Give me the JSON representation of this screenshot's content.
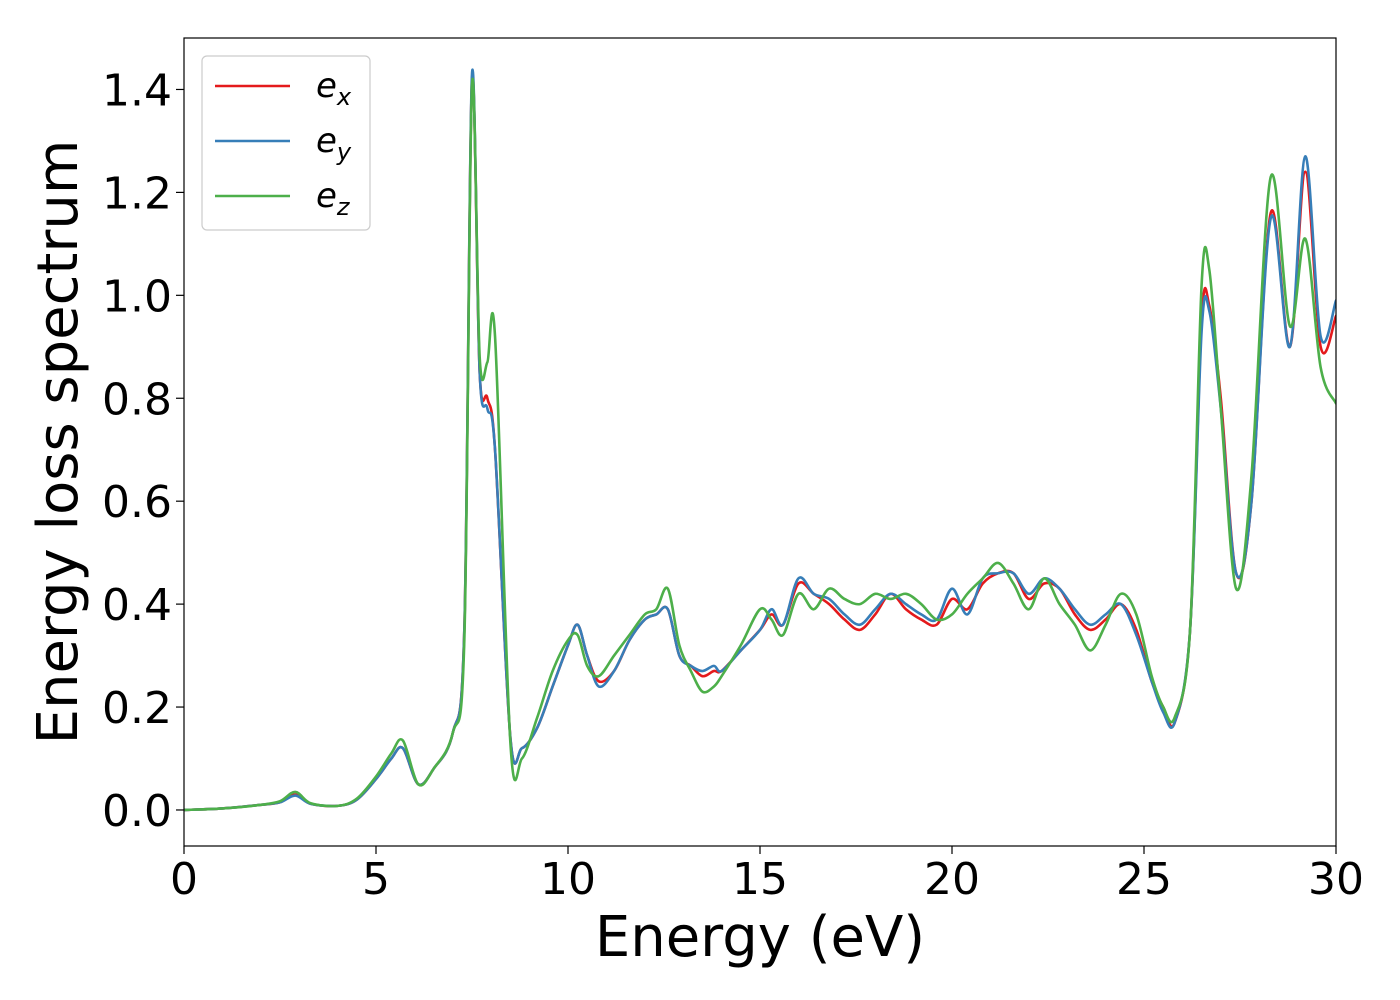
{
  "chart_data": {
    "type": "line",
    "xlabel": "Energy (eV)",
    "ylabel": "Energy loss spectrum",
    "xlim": [
      0,
      30
    ],
    "ylim": [
      -0.07,
      1.5
    ],
    "xticks": [
      0,
      5,
      10,
      15,
      20,
      25,
      30
    ],
    "xtick_labels": [
      "0",
      "5",
      "10",
      "15",
      "20",
      "25",
      "30"
    ],
    "yticks": [
      0.0,
      0.2,
      0.4,
      0.6,
      0.8,
      1.0,
      1.2,
      1.4
    ],
    "ytick_labels": [
      "0.0",
      "0.2",
      "0.4",
      "0.6",
      "0.8",
      "1.0",
      "1.2",
      "1.4"
    ],
    "grid": false,
    "legend_position": "top-left",
    "series": [
      {
        "name": "e_x",
        "legend_base": "e",
        "legend_sub": "x",
        "color": "#e41a1c",
        "x": [
          0,
          1,
          2,
          2.5,
          2.9,
          3.3,
          4,
          4.5,
          5,
          5.4,
          5.7,
          6.1,
          6.5,
          7,
          7.3,
          7.5,
          7.7,
          7.9,
          8.1,
          8.5,
          8.8,
          9.2,
          9.6,
          10,
          10.25,
          10.5,
          10.8,
          11.2,
          11.6,
          12,
          12.3,
          12.6,
          12.9,
          13.2,
          13.5,
          13.8,
          14,
          14.5,
          15,
          15.3,
          15.6,
          16,
          16.4,
          16.8,
          17.2,
          17.6,
          18,
          18.4,
          18.8,
          19.2,
          19.6,
          20,
          20.4,
          20.8,
          21.2,
          21.6,
          22,
          22.4,
          22.8,
          23.2,
          23.6,
          24,
          24.4,
          24.8,
          25.2,
          25.5,
          25.8,
          26.2,
          26.5,
          26.7,
          27,
          27.4,
          27.8,
          28.3,
          28.8,
          29.2,
          29.6,
          30
        ],
        "y": [
          0,
          0.003,
          0.01,
          0.015,
          0.03,
          0.012,
          0.008,
          0.02,
          0.06,
          0.1,
          0.12,
          0.05,
          0.08,
          0.15,
          0.35,
          1.42,
          0.85,
          0.8,
          0.7,
          0.14,
          0.12,
          0.16,
          0.24,
          0.32,
          0.36,
          0.3,
          0.25,
          0.27,
          0.33,
          0.37,
          0.38,
          0.39,
          0.3,
          0.28,
          0.26,
          0.27,
          0.27,
          0.31,
          0.35,
          0.38,
          0.36,
          0.44,
          0.42,
          0.4,
          0.37,
          0.35,
          0.38,
          0.42,
          0.39,
          0.37,
          0.36,
          0.41,
          0.39,
          0.44,
          0.46,
          0.46,
          0.41,
          0.44,
          0.43,
          0.38,
          0.35,
          0.37,
          0.4,
          0.35,
          0.25,
          0.2,
          0.17,
          0.35,
          0.95,
          0.98,
          0.8,
          0.46,
          0.6,
          1.16,
          0.9,
          1.24,
          0.9,
          0.96
        ]
      },
      {
        "name": "e_y",
        "legend_base": "e",
        "legend_sub": "y",
        "color": "#377eb8",
        "x": [
          0,
          1,
          2,
          2.5,
          2.9,
          3.3,
          4,
          4.5,
          5,
          5.4,
          5.7,
          6.1,
          6.5,
          7,
          7.3,
          7.5,
          7.7,
          7.9,
          8.1,
          8.5,
          8.8,
          9.2,
          9.6,
          10,
          10.25,
          10.5,
          10.8,
          11.2,
          11.6,
          12,
          12.3,
          12.6,
          12.9,
          13.2,
          13.5,
          13.8,
          14,
          14.5,
          15,
          15.3,
          15.6,
          16,
          16.4,
          16.8,
          17.2,
          17.6,
          18,
          18.4,
          18.8,
          19.2,
          19.6,
          20,
          20.4,
          20.8,
          21.2,
          21.6,
          22,
          22.4,
          22.8,
          23.2,
          23.6,
          24,
          24.4,
          24.8,
          25.2,
          25.5,
          25.8,
          26.2,
          26.5,
          26.7,
          27,
          27.4,
          27.8,
          28.3,
          28.8,
          29.2,
          29.6,
          30
        ],
        "y": [
          0,
          0.003,
          0.01,
          0.015,
          0.028,
          0.012,
          0.008,
          0.02,
          0.06,
          0.1,
          0.12,
          0.05,
          0.08,
          0.15,
          0.35,
          1.43,
          0.85,
          0.78,
          0.7,
          0.14,
          0.12,
          0.16,
          0.24,
          0.32,
          0.36,
          0.3,
          0.24,
          0.27,
          0.33,
          0.37,
          0.38,
          0.39,
          0.3,
          0.28,
          0.27,
          0.28,
          0.27,
          0.31,
          0.35,
          0.39,
          0.36,
          0.45,
          0.42,
          0.41,
          0.38,
          0.36,
          0.39,
          0.42,
          0.4,
          0.38,
          0.37,
          0.43,
          0.38,
          0.45,
          0.46,
          0.46,
          0.42,
          0.45,
          0.43,
          0.39,
          0.36,
          0.38,
          0.4,
          0.34,
          0.25,
          0.19,
          0.17,
          0.35,
          0.93,
          0.97,
          0.78,
          0.46,
          0.6,
          1.15,
          0.9,
          1.27,
          0.92,
          0.99
        ]
      },
      {
        "name": "e_z",
        "legend_base": "e",
        "legend_sub": "z",
        "color": "#4daf4a",
        "x": [
          0,
          1,
          2,
          2.5,
          2.9,
          3.3,
          4,
          4.5,
          5,
          5.4,
          5.7,
          6.1,
          6.5,
          7,
          7.3,
          7.5,
          7.7,
          7.9,
          8.1,
          8.5,
          8.8,
          9.2,
          9.6,
          10,
          10.25,
          10.5,
          10.8,
          11.2,
          11.6,
          12,
          12.3,
          12.6,
          12.9,
          13.2,
          13.5,
          13.8,
          14,
          14.5,
          15,
          15.3,
          15.6,
          16,
          16.4,
          16.8,
          17.2,
          17.6,
          18,
          18.4,
          18.8,
          19.2,
          19.6,
          20,
          20.4,
          20.8,
          21.2,
          21.6,
          22,
          22.4,
          22.8,
          23.2,
          23.6,
          24,
          24.4,
          24.8,
          25.2,
          25.5,
          25.8,
          26.2,
          26.5,
          26.7,
          27,
          27.4,
          27.8,
          28.3,
          28.8,
          29.2,
          29.6,
          30
        ],
        "y": [
          0,
          0.003,
          0.01,
          0.017,
          0.035,
          0.013,
          0.008,
          0.022,
          0.065,
          0.11,
          0.135,
          0.05,
          0.08,
          0.15,
          0.33,
          1.41,
          0.88,
          0.87,
          0.92,
          0.13,
          0.1,
          0.18,
          0.27,
          0.33,
          0.34,
          0.28,
          0.26,
          0.3,
          0.34,
          0.38,
          0.39,
          0.43,
          0.32,
          0.27,
          0.23,
          0.24,
          0.26,
          0.32,
          0.39,
          0.37,
          0.34,
          0.42,
          0.39,
          0.43,
          0.41,
          0.4,
          0.42,
          0.41,
          0.42,
          0.4,
          0.37,
          0.38,
          0.42,
          0.45,
          0.48,
          0.44,
          0.39,
          0.45,
          0.4,
          0.36,
          0.31,
          0.36,
          0.42,
          0.38,
          0.26,
          0.2,
          0.18,
          0.35,
          1.02,
          1.05,
          0.78,
          0.43,
          0.65,
          1.23,
          0.94,
          1.11,
          0.86,
          0.79
        ]
      }
    ]
  }
}
